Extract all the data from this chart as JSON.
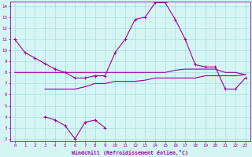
{
  "x": [
    0,
    1,
    2,
    3,
    4,
    5,
    6,
    7,
    8,
    9,
    10,
    11,
    12,
    13,
    14,
    15,
    16,
    17,
    18,
    19,
    20,
    21,
    22,
    23
  ],
  "line_main": [
    11.0,
    9.8,
    9.3,
    8.8,
    8.3,
    8.0,
    7.5,
    7.5,
    7.7,
    7.7,
    9.8,
    11.0,
    12.8,
    13.0,
    14.3,
    14.3,
    12.8,
    11.0,
    8.7,
    8.5,
    8.5,
    6.5,
    6.5,
    7.5
  ],
  "line_upper": [
    8.0,
    8.0,
    8.0,
    8.0,
    8.0,
    8.0,
    8.0,
    8.0,
    8.0,
    8.0,
    8.0,
    8.0,
    8.0,
    8.0,
    8.0,
    8.0,
    8.2,
    8.3,
    8.3,
    8.3,
    8.3,
    8.0,
    8.0,
    7.8
  ],
  "line_lower": [
    null,
    null,
    null,
    6.5,
    6.5,
    6.5,
    6.5,
    6.7,
    7.0,
    7.0,
    7.2,
    7.2,
    7.2,
    7.3,
    7.5,
    7.5,
    7.5,
    7.5,
    7.5,
    7.7,
    7.7,
    7.7,
    7.7,
    7.8
  ],
  "line_bottom": [
    null,
    null,
    null,
    4.0,
    3.7,
    3.2,
    2.0,
    3.5,
    3.7,
    3.0,
    null,
    null,
    null,
    null,
    null,
    null,
    null,
    null,
    null,
    null,
    null,
    null,
    null,
    null
  ],
  "xlabel": "Windchill (Refroidissement éolien,°C)",
  "ylim": [
    2,
    14
  ],
  "xlim": [
    0,
    23
  ],
  "yticks": [
    2,
    3,
    4,
    5,
    6,
    7,
    8,
    9,
    10,
    11,
    12,
    13,
    14
  ],
  "xticks": [
    0,
    1,
    2,
    3,
    4,
    5,
    6,
    7,
    8,
    9,
    10,
    11,
    12,
    13,
    14,
    15,
    16,
    17,
    18,
    19,
    20,
    21,
    22,
    23
  ],
  "line_color": "#990099",
  "bg_color": "#d5f5f5",
  "grid_color": "#aadddd",
  "axis_color": "#990099",
  "tick_color": "#990099",
  "label_color": "#990099"
}
